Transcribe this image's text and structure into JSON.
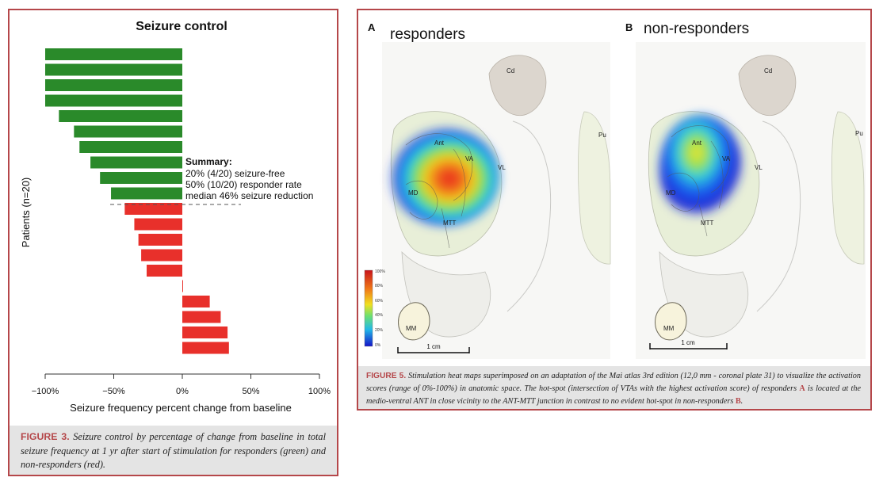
{
  "left_figure": {
    "chart_data": {
      "type": "bar",
      "orientation": "horizontal",
      "title": "Seizure control",
      "xlabel": "Seizure frequency percent change from baseline",
      "ylabel": "Patients (n=20)",
      "xlim": [
        -100,
        100
      ],
      "xticks": [
        "−100%",
        "−50%",
        "0%",
        "50%",
        "100%"
      ],
      "xtick_values": [
        -100,
        -50,
        0,
        50,
        100
      ],
      "grid": false,
      "values": [
        -100,
        -100,
        -100,
        -100,
        -90,
        -79,
        -75,
        -67,
        -60,
        -52,
        -42,
        -35,
        -32,
        -30,
        -26,
        0,
        20,
        28,
        33,
        34
      ],
      "colors": [
        "#2a8a2a",
        "#2a8a2a",
        "#2a8a2a",
        "#2a8a2a",
        "#2a8a2a",
        "#2a8a2a",
        "#2a8a2a",
        "#2a8a2a",
        "#2a8a2a",
        "#2a8a2a",
        "#e8302b",
        "#e8302b",
        "#e8302b",
        "#e8302b",
        "#e8302b",
        "#e8302b",
        "#e8302b",
        "#e8302b",
        "#e8302b",
        "#e8302b"
      ],
      "responder_threshold": -50,
      "summary": {
        "heading": "Summary:",
        "lines": [
          "20% (4/20) seizure-free",
          "50% (10/20) responder rate",
          "median 46% seizure reduction"
        ]
      }
    },
    "caption": {
      "label": "FIGURE 3.",
      "text": "Seizure control by percentage of change from baseline in total seizure frequency at 1 yr after start of stimulation for responders (green) and non-responders (red)."
    }
  },
  "right_figure": {
    "panel_a": {
      "letter": "A",
      "title": "responders"
    },
    "panel_b": {
      "letter": "B",
      "title": "non-responders"
    },
    "region_labels": {
      "cd": "Cd",
      "pu": "Pu",
      "ant": "Ant",
      "va": "VA",
      "vl": "VL",
      "md": "MD",
      "mtt": "MTT",
      "mm": "MM"
    },
    "scalebar": "1 cm",
    "colorbar": {
      "ticks": [
        "100%",
        "80%",
        "60%",
        "40%",
        "20%",
        "0%"
      ]
    },
    "caption": {
      "label": "FIGURE 5.",
      "text_1": "Stimulation heat maps superimposed on an adaptation of the Mai atlas 3rd edition (12,0 mm - coronal plate 31) to visualize the activation scores (range of 0%-100%) in anatomic space. The hot-spot (intersection of VTAs with the highest activation score) of responders ",
      "ref_a": "A",
      "text_2": " is located at the medio-ventral ANT in close vicinity to the ANT-MTT junction in contrast to no evident hot-spot in non-responders ",
      "ref_b": "B",
      "text_3": "."
    }
  }
}
